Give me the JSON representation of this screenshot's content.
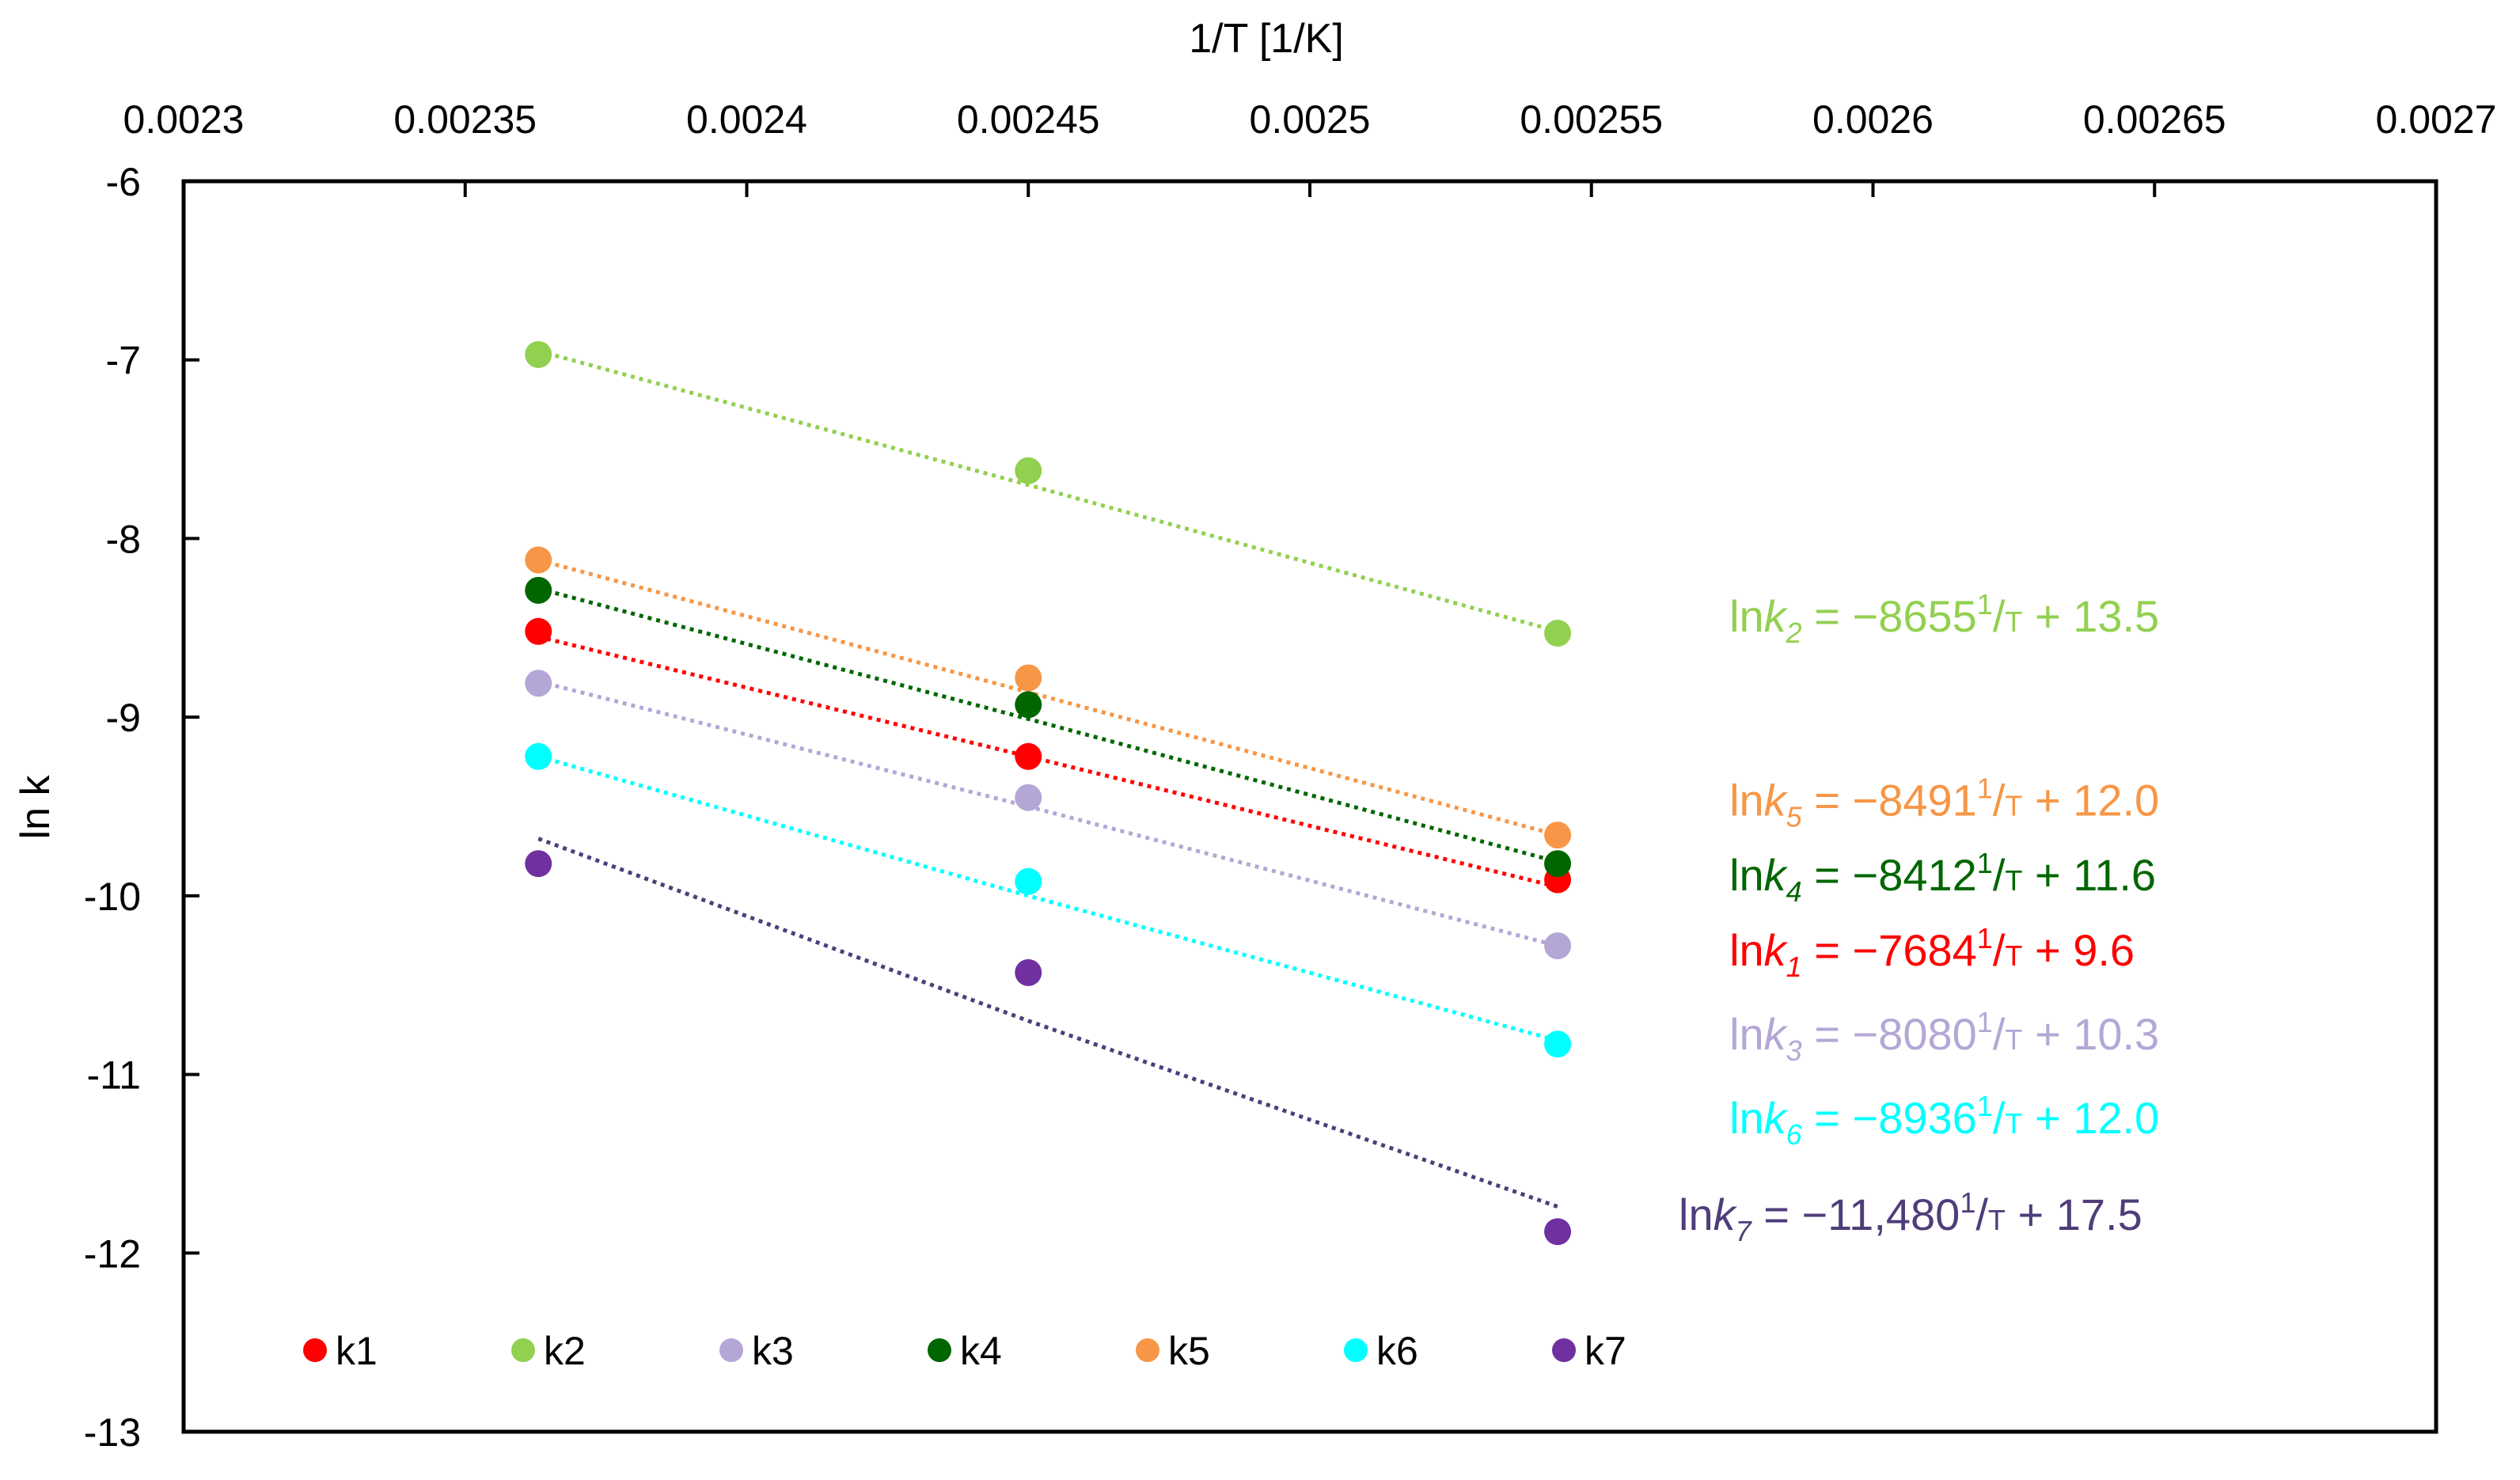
{
  "chart_data": {
    "type": "scatter",
    "xlabel": "1/T [1/K]",
    "ylabel": "ln k",
    "x_axis_position": "top",
    "xlim": [
      0.0023,
      0.0027
    ],
    "ylim": [
      -13,
      -6
    ],
    "x_ticks": [
      "0.0023",
      "0.00235",
      "0.0024",
      "0.00245",
      "0.0025",
      "0.00255",
      "0.0026",
      "0.00265",
      "0.0027"
    ],
    "y_ticks": [
      "-6",
      "-7",
      "-8",
      "-9",
      "-10",
      "-11",
      "-12",
      "-13"
    ],
    "x_tick_values": [
      0.0023,
      0.00235,
      0.0024,
      0.00245,
      0.0025,
      0.00255,
      0.0026,
      0.00265,
      0.0027
    ],
    "y_tick_values": [
      -6,
      -7,
      -8,
      -9,
      -10,
      -11,
      -12,
      -13
    ],
    "grid": false,
    "legend_placement": "bottom-inside",
    "x": [
      0.002363,
      0.00245,
      0.002544
    ],
    "series": [
      {
        "name": "k1",
        "color": "#ff0000",
        "values": [
          -8.52,
          -9.22,
          -9.91
        ],
        "trend": [
          -8.55,
          -9.22,
          -9.95
        ]
      },
      {
        "name": "k2",
        "color": "#92d050",
        "values": [
          -6.97,
          -7.62,
          -8.53
        ],
        "trend": [
          -6.95,
          -7.7,
          -8.52
        ]
      },
      {
        "name": "k3",
        "color": "#b4a7d6",
        "values": [
          -8.81,
          -9.45,
          -10.28
        ],
        "trend": [
          -8.8,
          -9.5,
          -10.28
        ]
      },
      {
        "name": "k4",
        "color": "#006600",
        "values": [
          -8.29,
          -8.93,
          -9.82
        ],
        "trend": [
          -8.28,
          -9.01,
          -9.81
        ]
      },
      {
        "name": "k5",
        "color": "#f79646",
        "values": [
          -8.12,
          -8.78,
          -9.66
        ],
        "trend": [
          -8.12,
          -8.86,
          -9.66
        ]
      },
      {
        "name": "k6",
        "color": "#00ffff",
        "values": [
          -9.22,
          -9.92,
          -10.83
        ],
        "trend": [
          -9.22,
          -10.0,
          -10.81
        ]
      },
      {
        "name": "k7",
        "color": "#7030a0",
        "line_color": "#4f3d7a",
        "values": [
          -9.82,
          -10.43,
          -11.88
        ],
        "trend": [
          -9.68,
          -10.7,
          -11.74
        ]
      }
    ],
    "annotations": [
      {
        "series": "k2",
        "color": "#92d050",
        "ln": "ln",
        "k": "k",
        "sub": "2",
        "eq": " = −8655",
        "sup": "1",
        "slash": "/",
        "T": "T",
        "tail": "  + 13.5",
        "x_anchor": 0.0025745,
        "y_anchor": -8.52
      },
      {
        "series": "k5",
        "color": "#f79646",
        "ln": "ln",
        "k": "k",
        "sub": "5",
        "eq": " = −8491",
        "sup": "1",
        "slash": "/",
        "T": "T",
        "tail": "  + 12.0",
        "x_anchor": 0.0025745,
        "y_anchor": -9.55
      },
      {
        "series": "k4",
        "color": "#006600",
        "ln": "ln",
        "k": "k",
        "sub": "4",
        "eq": " = −8412",
        "sup": "1",
        "slash": "/",
        "T": "T",
        "tail": "  + 11.6",
        "x_anchor": 0.0025745,
        "y_anchor": -9.97
      },
      {
        "series": "k1",
        "color": "#ff0000",
        "ln": "ln",
        "k": "k",
        "sub": "1",
        "eq": " = −7684",
        "sup": "1",
        "slash": "/",
        "T": "T",
        "tail": "  + 9.6",
        "x_anchor": 0.0025745,
        "y_anchor": -10.39
      },
      {
        "series": "k3",
        "color": "#b4a7d6",
        "ln": "ln",
        "k": "k",
        "sub": "3",
        "eq": " = −8080",
        "sup": "1",
        "slash": "/",
        "T": "T",
        "tail": "  + 10.3",
        "x_anchor": 0.0025745,
        "y_anchor": -10.86
      },
      {
        "series": "k6",
        "color": "#00ffff",
        "ln": "ln",
        "k": "k",
        "sub": "6",
        "eq": " = −8936",
        "sup": "1",
        "slash": "/",
        "T": "T",
        "tail": "   + 12.0",
        "x_anchor": 0.0025745,
        "y_anchor": -11.33
      },
      {
        "series": "k7",
        "color": "#4f3d7a",
        "ln": "ln",
        "k": "k",
        "sub": "7",
        "eq": " = −11,480",
        "sup": "1",
        "slash": "/",
        "T": "T",
        "tail": "  + 17.5",
        "x_anchor": 0.0025655,
        "y_anchor": -11.87
      }
    ]
  }
}
